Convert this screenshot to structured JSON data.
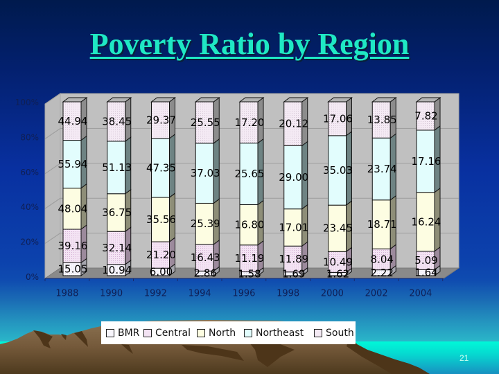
{
  "slide": {
    "title": "Poverty Ratio by Region",
    "page_number": "21"
  },
  "colors": {
    "title": "#1fe8c4",
    "axis_text": "#0f1f55",
    "plot_wall": "#c0c0c0",
    "plot_floor": "#8a8a8a",
    "gridline": "#9c9c9c",
    "bar_cap": "#b3b3b3"
  },
  "chart_data": {
    "type": "bar",
    "subtype": "100% stacked 3D column",
    "title": "Poverty Ratio by Region",
    "xlabel": "",
    "ylabel": "",
    "ylim": [
      0,
      100
    ],
    "yticks": [
      "0%",
      "20%",
      "40%",
      "60%",
      "80%",
      "100%"
    ],
    "grid": true,
    "legend_position": "bottom",
    "data_labels": true,
    "categories": [
      "1988",
      "1990",
      "1992",
      "1994",
      "1996",
      "1998",
      "2000",
      "2002",
      "2004"
    ],
    "series": [
      {
        "name": "BMR",
        "color": "#f8f6fc",
        "dot": "#d6cfe6",
        "side": "#a6a6ae",
        "values": [
          15.05,
          10.94,
          6.0,
          2.86,
          1.58,
          1.69,
          1.62,
          2.22,
          1.64
        ]
      },
      {
        "name": "Central",
        "color": "#f3e3f3",
        "dot": "#d6b2d6",
        "side": "#9c8a9c",
        "values": [
          39.16,
          32.14,
          21.2,
          16.43,
          11.19,
          11.89,
          10.49,
          8.04,
          5.09
        ]
      },
      {
        "name": "North",
        "color": "#fdfde2",
        "dot": "#fdfde2",
        "side": "#8e8e78",
        "values": [
          48.04,
          36.75,
          35.56,
          25.39,
          16.8,
          17.01,
          23.45,
          18.71,
          16.24
        ]
      },
      {
        "name": "Northeast",
        "color": "#e2fdfd",
        "dot": "#e2fdfd",
        "side": "#6e8383",
        "values": [
          55.94,
          51.13,
          47.35,
          37.03,
          25.65,
          29.0,
          35.03,
          23.74,
          17.16
        ]
      },
      {
        "name": "South",
        "color": "#f4eaf4",
        "dot": "#d2c2d2",
        "side": "#8c8c8c",
        "values": [
          44.94,
          38.45,
          29.37,
          25.55,
          17.2,
          20.12,
          17.06,
          13.85,
          7.82
        ]
      }
    ]
  }
}
